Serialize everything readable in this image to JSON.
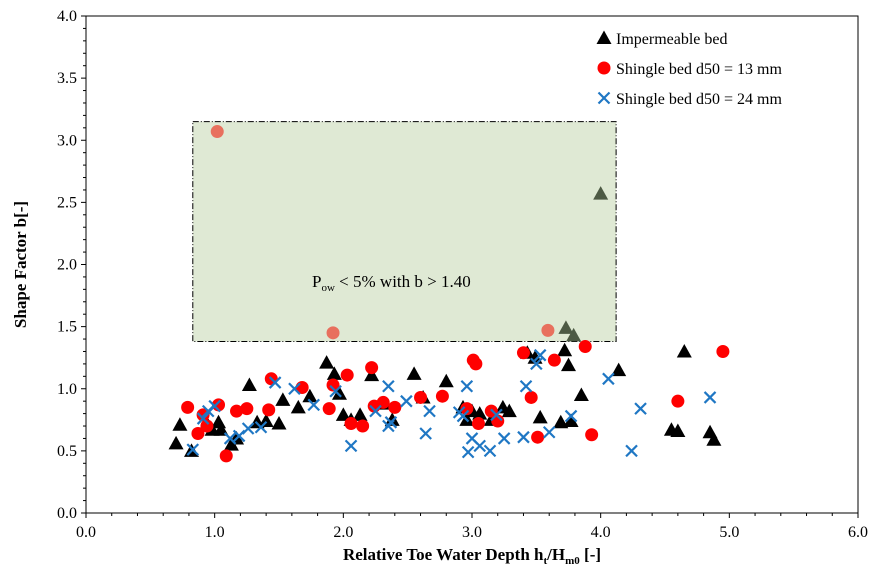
{
  "chart_data": {
    "type": "scatter",
    "title": "",
    "xlabel": "Relative Toe Water Depth",
    "xlabel_symbol": {
      "base": "h",
      "sub1": "t",
      "mid": "/H",
      "sub2": "m0",
      "tail": " [-]"
    },
    "ylabel": "Shape Factor b[-]",
    "xlim": [
      0.0,
      6.0
    ],
    "ylim": [
      0.0,
      4.0
    ],
    "x_ticks": [
      "0.0",
      "1.0",
      "2.0",
      "3.0",
      "4.0",
      "5.0",
      "6.0"
    ],
    "y_ticks": [
      "0.0",
      "0.5",
      "1.0",
      "1.5",
      "2.0",
      "2.5",
      "3.0",
      "3.5",
      "4.0"
    ],
    "grid": false,
    "legend_position": "top-right",
    "annotation": {
      "base": "P",
      "sub": "ow",
      "rest": " < 5% with b > 1.40"
    },
    "highlight_region": {
      "x": [
        0.83,
        4.12
      ],
      "y": [
        1.38,
        3.15
      ],
      "fill": "#dfe9d4"
    },
    "series": [
      {
        "name": "Impermeable bed",
        "marker": "triangle",
        "color": "#000000",
        "points": [
          [
            0.7,
            0.56
          ],
          [
            0.73,
            0.71
          ],
          [
            0.82,
            0.5
          ],
          [
            0.94,
            0.72
          ],
          [
            0.98,
            0.67
          ],
          [
            1.03,
            0.73
          ],
          [
            1.05,
            0.67
          ],
          [
            1.13,
            0.55
          ],
          [
            1.17,
            0.6
          ],
          [
            1.27,
            1.03
          ],
          [
            1.33,
            0.73
          ],
          [
            1.4,
            0.74
          ],
          [
            1.5,
            0.72
          ],
          [
            1.53,
            0.91
          ],
          [
            1.65,
            0.85
          ],
          [
            1.74,
            0.94
          ],
          [
            1.87,
            1.21
          ],
          [
            1.93,
            1.12
          ],
          [
            1.97,
            0.96
          ],
          [
            2.0,
            0.79
          ],
          [
            2.06,
            0.75
          ],
          [
            2.13,
            0.79
          ],
          [
            2.22,
            1.11
          ],
          [
            2.32,
            0.88
          ],
          [
            2.38,
            0.75
          ],
          [
            2.55,
            1.12
          ],
          [
            2.62,
            0.93
          ],
          [
            2.8,
            1.06
          ],
          [
            2.93,
            0.85
          ],
          [
            2.96,
            0.75
          ],
          [
            3.0,
            0.82
          ],
          [
            3.06,
            0.8
          ],
          [
            3.15,
            0.75
          ],
          [
            3.24,
            0.85
          ],
          [
            3.29,
            0.82
          ],
          [
            3.43,
            1.29
          ],
          [
            3.49,
            1.25
          ],
          [
            3.53,
            0.77
          ],
          [
            3.69,
            0.73
          ],
          [
            3.72,
            1.31
          ],
          [
            3.75,
            1.19
          ],
          [
            3.77,
            0.74
          ],
          [
            3.85,
            0.95
          ],
          [
            4.14,
            1.15
          ],
          [
            4.55,
            0.67
          ],
          [
            4.6,
            0.66
          ],
          [
            4.65,
            1.3
          ],
          [
            4.85,
            0.65
          ],
          [
            4.88,
            0.59
          ]
        ]
      },
      {
        "name": "Shingle bed d50 = 13 mm",
        "marker": "circle",
        "color": "#ff0000",
        "points": [
          [
            0.79,
            0.85
          ],
          [
            0.87,
            0.64
          ],
          [
            0.91,
            0.79
          ],
          [
            0.94,
            0.7
          ],
          [
            1.03,
            0.87
          ],
          [
            1.09,
            0.46
          ],
          [
            1.17,
            0.82
          ],
          [
            1.25,
            0.84
          ],
          [
            1.42,
            0.83
          ],
          [
            1.44,
            1.08
          ],
          [
            1.68,
            1.01
          ],
          [
            1.89,
            0.84
          ],
          [
            1.92,
            1.03
          ],
          [
            2.03,
            1.11
          ],
          [
            2.06,
            0.72
          ],
          [
            2.15,
            0.7
          ],
          [
            2.22,
            1.17
          ],
          [
            2.24,
            0.86
          ],
          [
            2.31,
            0.89
          ],
          [
            2.4,
            0.85
          ],
          [
            2.6,
            0.93
          ],
          [
            2.77,
            0.94
          ],
          [
            2.96,
            0.84
          ],
          [
            3.01,
            1.23
          ],
          [
            3.03,
            1.2
          ],
          [
            3.05,
            0.72
          ],
          [
            3.15,
            0.82
          ],
          [
            3.2,
            0.74
          ],
          [
            3.4,
            1.29
          ],
          [
            3.46,
            0.93
          ],
          [
            3.51,
            0.61
          ],
          [
            3.64,
            1.23
          ],
          [
            3.88,
            1.34
          ],
          [
            3.93,
            0.63
          ],
          [
            4.6,
            0.9
          ],
          [
            4.95,
            1.3
          ]
        ]
      },
      {
        "name": "Shingle bed d50 = 24 mm",
        "marker": "x",
        "color": "#1f77c4",
        "points": [
          [
            0.83,
            0.51
          ],
          [
            0.91,
            0.76
          ],
          [
            0.95,
            0.82
          ],
          [
            1.0,
            0.86
          ],
          [
            1.12,
            0.6
          ],
          [
            1.19,
            0.62
          ],
          [
            1.26,
            0.68
          ],
          [
            1.36,
            0.69
          ],
          [
            1.47,
            1.05
          ],
          [
            1.62,
            1.0
          ],
          [
            1.77,
            0.87
          ],
          [
            1.94,
            0.98
          ],
          [
            2.06,
            0.54
          ],
          [
            2.25,
            0.82
          ],
          [
            2.35,
            1.02
          ],
          [
            2.35,
            0.7
          ],
          [
            2.37,
            0.73
          ],
          [
            2.49,
            0.9
          ],
          [
            2.64,
            0.64
          ],
          [
            2.67,
            0.82
          ],
          [
            2.9,
            0.81
          ],
          [
            2.93,
            0.78
          ],
          [
            2.96,
            1.02
          ],
          [
            2.97,
            0.49
          ],
          [
            3.0,
            0.6
          ],
          [
            3.06,
            0.54
          ],
          [
            3.14,
            0.5
          ],
          [
            3.19,
            0.79
          ],
          [
            3.25,
            0.6
          ],
          [
            3.4,
            0.61
          ],
          [
            3.42,
            1.02
          ],
          [
            3.5,
            1.2
          ],
          [
            3.53,
            1.27
          ],
          [
            3.6,
            0.65
          ],
          [
            3.77,
            0.78
          ],
          [
            4.06,
            1.08
          ],
          [
            4.24,
            0.5
          ],
          [
            4.31,
            0.84
          ],
          [
            4.85,
            0.93
          ]
        ]
      }
    ],
    "highlighted_points": [
      {
        "series": "Shingle bed d50 = 13 mm",
        "x": 1.02,
        "y": 3.07
      },
      {
        "series": "Shingle bed d50 = 13 mm",
        "x": 1.92,
        "y": 1.45
      },
      {
        "series": "Shingle bed d50 = 13 mm",
        "x": 3.59,
        "y": 1.47
      },
      {
        "series": "Impermeable bed",
        "x": 4.0,
        "y": 2.57
      },
      {
        "series": "Impermeable bed",
        "x": 3.73,
        "y": 1.49
      },
      {
        "series": "Impermeable bed",
        "x": 3.79,
        "y": 1.43
      }
    ],
    "highlighted_colors": {
      "circle": "#e8705e",
      "triangle": "#4d5a44"
    }
  }
}
